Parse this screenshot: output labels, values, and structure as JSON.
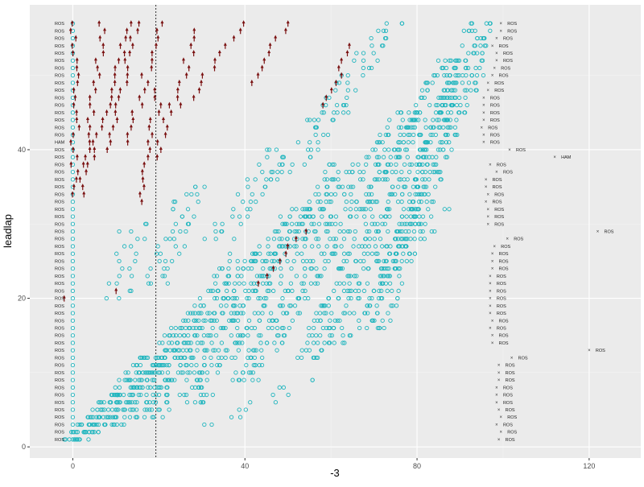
{
  "chart_data": {
    "type": "scatter",
    "title": "",
    "xlabel": "-3",
    "ylabel": "leadlap",
    "xlim": [
      -10,
      132
    ],
    "ylim": [
      -1.5,
      59.5
    ],
    "x_ticks": [
      0,
      40,
      80,
      120
    ],
    "y_ticks": [
      0,
      20,
      40
    ],
    "x_tick_labels": [
      "0",
      "40",
      "80",
      "120"
    ],
    "y_tick_labels": [
      "0",
      "20",
      "40"
    ],
    "grid": true,
    "panel_background": "#ebebeb",
    "colors": {
      "circle": "#1fb5be",
      "arrow": "#7a1111",
      "guide": "#333333",
      "cross": "#333333"
    },
    "reference_line": {
      "x": 19.3,
      "style": "dotted"
    },
    "row_labels": [
      "ROS",
      "ROS",
      "ROS",
      "ROS",
      "ROS",
      "ROS",
      "ROS",
      "ROS",
      "ROS",
      "ROS",
      "ROS",
      "ROS",
      "ROS",
      "ROS",
      "ROS",
      "ROS",
      "ROS",
      "ROS",
      "ROS",
      "ROS",
      "ROS",
      "ROS",
      "ROS",
      "ROS",
      "ROS",
      "ROS",
      "ROS",
      "ROS",
      "ROS",
      "ROS",
      "ROS",
      "ROS",
      "ROS",
      "ROS",
      "ROS",
      "ROS",
      "ROS",
      "ROS",
      "ROS",
      "ROS",
      "HAM",
      "ROS",
      "ROS",
      "ROS",
      "ROS",
      "ROS",
      "ROS",
      "ROS",
      "ROS",
      "ROS",
      "ROS",
      "ROS",
      "ROS",
      "ROS",
      "ROS",
      "ROS",
      "ROS"
    ],
    "end_markers": [
      {
        "y": 1,
        "x": 99,
        "label": "ROS"
      },
      {
        "y": 2,
        "x": 99.5,
        "label": "ROS"
      },
      {
        "y": 3,
        "x": 98.5,
        "label": "ROS"
      },
      {
        "y": 4,
        "x": 99.5,
        "label": "ROS"
      },
      {
        "y": 5,
        "x": 99,
        "label": "ROS"
      },
      {
        "y": 6,
        "x": 98.5,
        "label": "ROS"
      },
      {
        "y": 7,
        "x": 98.5,
        "label": "ROS"
      },
      {
        "y": 8,
        "x": 98.5,
        "label": "ROS"
      },
      {
        "y": 9,
        "x": 99,
        "label": "ROS"
      },
      {
        "y": 10,
        "x": 99,
        "label": "ROS"
      },
      {
        "y": 11,
        "x": 99,
        "label": "ROS"
      },
      {
        "y": 12,
        "x": 102,
        "label": "ROS"
      },
      {
        "y": 13,
        "x": 120,
        "label": "ROS"
      },
      {
        "y": 14,
        "x": 97.5,
        "label": "ROS"
      },
      {
        "y": 15,
        "x": 97.5,
        "label": "ROS"
      },
      {
        "y": 16,
        "x": 97,
        "label": "ROS"
      },
      {
        "y": 17,
        "x": 97.5,
        "label": "ROS"
      },
      {
        "y": 18,
        "x": 97,
        "label": "ROS"
      },
      {
        "y": 19,
        "x": 97,
        "label": "ROS"
      },
      {
        "y": 20,
        "x": 97,
        "label": "ROS"
      },
      {
        "y": 21,
        "x": 97,
        "label": "ROS"
      },
      {
        "y": 22,
        "x": 97,
        "label": "ROS"
      },
      {
        "y": 23,
        "x": 97,
        "label": "ROS"
      },
      {
        "y": 24,
        "x": 97.5,
        "label": "ROS"
      },
      {
        "y": 25,
        "x": 97.5,
        "label": "ROS"
      },
      {
        "y": 26,
        "x": 97.5,
        "label": "ROS"
      },
      {
        "y": 27,
        "x": 98,
        "label": "ROS"
      },
      {
        "y": 28,
        "x": 101,
        "label": "ROS"
      },
      {
        "y": 29,
        "x": 122,
        "label": "ROS"
      },
      {
        "y": 30,
        "x": 96.5,
        "label": "ROS"
      },
      {
        "y": 31,
        "x": 96.5,
        "label": "ROS"
      },
      {
        "y": 32,
        "x": 96.5,
        "label": "ROS"
      },
      {
        "y": 33,
        "x": 96,
        "label": "ROS"
      },
      {
        "y": 34,
        "x": 96.5,
        "label": "ROS"
      },
      {
        "y": 35,
        "x": 96,
        "label": "ROS"
      },
      {
        "y": 36,
        "x": 96,
        "label": "ROS"
      },
      {
        "y": 37,
        "x": 98.5,
        "label": "ROS"
      },
      {
        "y": 38,
        "x": 97,
        "label": "ROS"
      },
      {
        "y": 39,
        "x": 112,
        "label": "HAM"
      },
      {
        "y": 40,
        "x": 101.5,
        "label": "ROS"
      },
      {
        "y": 41,
        "x": 95.5,
        "label": "ROS"
      },
      {
        "y": 42,
        "x": 95.5,
        "label": "ROS"
      },
      {
        "y": 43,
        "x": 95,
        "label": "ROS"
      },
      {
        "y": 44,
        "x": 95.5,
        "label": "ROS"
      },
      {
        "y": 45,
        "x": 95.5,
        "label": "ROS"
      },
      {
        "y": 46,
        "x": 95.5,
        "label": "ROS"
      },
      {
        "y": 47,
        "x": 95.5,
        "label": "ROS"
      },
      {
        "y": 48,
        "x": 96.5,
        "label": "ROS"
      },
      {
        "y": 49,
        "x": 96.5,
        "label": "ROS"
      },
      {
        "y": 50,
        "x": 97.5,
        "label": "ROS"
      },
      {
        "y": 51,
        "x": 98,
        "label": "ROS"
      },
      {
        "y": 52,
        "x": 98.5,
        "label": "ROS"
      },
      {
        "y": 53,
        "x": 98.5,
        "label": "ROS"
      },
      {
        "y": 54,
        "x": 97.5,
        "label": "ROS"
      },
      {
        "y": 55,
        "x": 98.5,
        "label": "ROS"
      },
      {
        "y": 56,
        "x": 99.5,
        "label": "ROS"
      },
      {
        "y": 57,
        "x": 99.5,
        "label": "ROS"
      }
    ],
    "circle_bands": [
      {
        "y0": 1,
        "y1": 57,
        "x0": 0,
        "x1": 0,
        "n": 1
      },
      {
        "y0": 1,
        "y1": 12,
        "x0": 1,
        "x1": 19,
        "n": 10
      },
      {
        "y0": 2,
        "y1": 18,
        "x0": 6,
        "x1": 29,
        "n": 6
      },
      {
        "y0": 3,
        "y1": 26,
        "x0": 12,
        "x1": 40,
        "n": 5
      },
      {
        "y0": 4,
        "y1": 32,
        "x0": 18,
        "x1": 53,
        "n": 6
      },
      {
        "y0": 6,
        "y1": 38,
        "x0": 28,
        "x1": 63,
        "n": 6
      },
      {
        "y0": 9,
        "y1": 45,
        "x0": 40,
        "x1": 78,
        "n": 6
      },
      {
        "y0": 12,
        "y1": 52,
        "x0": 55,
        "x1": 88,
        "n": 6
      },
      {
        "y0": 16,
        "y1": 57,
        "x0": 70,
        "x1": 95,
        "n": 6
      },
      {
        "y0": 20,
        "y1": 30,
        "x0": 11,
        "x1": 14,
        "n": 2
      },
      {
        "y0": 22,
        "y1": 35,
        "x0": 20,
        "x1": 28,
        "n": 3
      },
      {
        "y0": 28,
        "y1": 40,
        "x0": 34,
        "x1": 48,
        "n": 3
      },
      {
        "y0": 36,
        "y1": 46,
        "x0": 48,
        "x1": 62,
        "n": 3
      },
      {
        "y0": 44,
        "y1": 57,
        "x0": 58,
        "x1": 74,
        "n": 3
      },
      {
        "y0": 14,
        "y1": 32,
        "x0": 60,
        "x1": 85,
        "n": 3
      },
      {
        "y0": 24,
        "y1": 50,
        "x0": 72,
        "x1": 92,
        "n": 4
      },
      {
        "y0": 3,
        "y1": 9,
        "x0": 34,
        "x1": 55,
        "n": 2
      }
    ],
    "arrow_bands": [
      {
        "y0": 34,
        "y1": 57,
        "x0": 0.5,
        "x1": 0.5
      },
      {
        "y0": 34,
        "y1": 57,
        "x0": 2,
        "x1": 7
      },
      {
        "y0": 38,
        "y1": 57,
        "x0": 4,
        "x1": 13
      },
      {
        "y0": 40,
        "y1": 57,
        "x0": 8,
        "x1": 15
      },
      {
        "y0": 41,
        "y1": 57,
        "x0": 13,
        "x1": 20
      },
      {
        "y0": 33,
        "y1": 48,
        "x0": 16,
        "x1": 20
      },
      {
        "y0": 39,
        "y1": 56,
        "x0": 19,
        "x1": 29
      },
      {
        "y0": 46,
        "y1": 57,
        "x0": 26,
        "x1": 40
      },
      {
        "y0": 49,
        "y1": 57,
        "x0": 41,
        "x1": 50
      },
      {
        "y0": 46,
        "y1": 54,
        "x0": 59,
        "x1": 64
      },
      {
        "y0": 22,
        "y1": 29,
        "x0": 43,
        "x1": 54
      },
      {
        "y0": 20,
        "y1": 21,
        "x0": -3,
        "x1": 10
      }
    ]
  }
}
